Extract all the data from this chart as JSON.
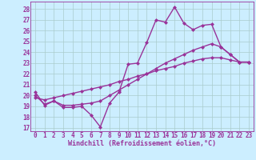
{
  "background_color": "#cceeff",
  "grid_color": "#aacccc",
  "line_color": "#993399",
  "markersize": 2.5,
  "linewidth": 1.0,
  "xlabel": "Windchill (Refroidissement éolien,°C)",
  "xlabel_fontsize": 6.0,
  "xticks": [
    0,
    1,
    2,
    3,
    4,
    5,
    6,
    7,
    8,
    9,
    10,
    11,
    12,
    13,
    14,
    15,
    16,
    17,
    18,
    19,
    20,
    21,
    22,
    23
  ],
  "yticks": [
    17,
    18,
    19,
    20,
    21,
    22,
    23,
    24,
    25,
    26,
    27,
    28
  ],
  "ylim": [
    16.7,
    28.7
  ],
  "xlim": [
    -0.5,
    23.5
  ],
  "tick_fontsize": 5.5,
  "series1_x": [
    0,
    1,
    2,
    3,
    4,
    5,
    6,
    7,
    8,
    9,
    10,
    11,
    12,
    13,
    14,
    15,
    16,
    17,
    18,
    19,
    20,
    21,
    22,
    23
  ],
  "series1_y": [
    20.3,
    19.1,
    19.5,
    18.9,
    18.9,
    19.0,
    18.2,
    17.1,
    19.3,
    20.3,
    22.9,
    23.0,
    24.9,
    27.0,
    26.8,
    28.2,
    26.7,
    26.1,
    26.5,
    26.6,
    24.5,
    23.8,
    23.1,
    23.1
  ],
  "series2_x": [
    0,
    1,
    2,
    3,
    4,
    5,
    6,
    7,
    8,
    9,
    10,
    11,
    12,
    13,
    14,
    15,
    16,
    17,
    18,
    19,
    20,
    21,
    22,
    23
  ],
  "series2_y": [
    20.0,
    19.2,
    19.5,
    19.1,
    19.1,
    19.2,
    19.3,
    19.5,
    20.0,
    20.5,
    21.0,
    21.5,
    22.0,
    22.5,
    23.0,
    23.4,
    23.8,
    24.2,
    24.5,
    24.8,
    24.5,
    23.8,
    23.1,
    23.1
  ],
  "series3_x": [
    0,
    1,
    2,
    3,
    4,
    5,
    6,
    7,
    8,
    9,
    10,
    11,
    12,
    13,
    14,
    15,
    16,
    17,
    18,
    19,
    20,
    21,
    22,
    23
  ],
  "series3_y": [
    19.8,
    19.6,
    19.8,
    20.0,
    20.2,
    20.4,
    20.6,
    20.8,
    21.0,
    21.3,
    21.5,
    21.8,
    22.0,
    22.3,
    22.5,
    22.7,
    23.0,
    23.2,
    23.4,
    23.5,
    23.5,
    23.3,
    23.1,
    23.1
  ]
}
